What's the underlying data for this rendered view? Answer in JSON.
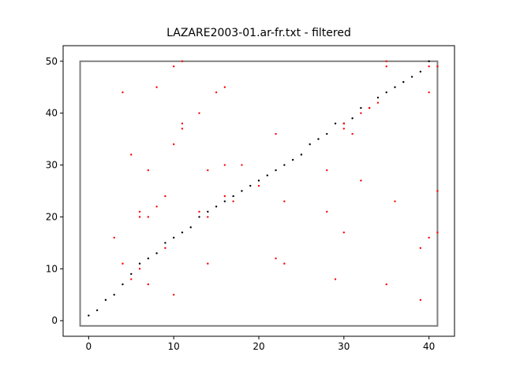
{
  "chart_data": {
    "type": "scatter",
    "title": "LAZARE2003-01.ar-fr.txt - filtered",
    "xlabel": "",
    "ylabel": "",
    "xlim": [
      -3,
      43
    ],
    "ylim": [
      -3,
      53
    ],
    "xticks": [
      0,
      10,
      20,
      30,
      40
    ],
    "yticks": [
      0,
      10,
      20,
      30,
      40,
      50
    ],
    "grid": false,
    "box": {
      "x": [
        -1,
        41
      ],
      "y": [
        -1,
        50
      ],
      "color": "#808080"
    },
    "series": [
      {
        "color": "#000000",
        "points": [
          [
            0,
            1
          ],
          [
            1,
            2
          ],
          [
            2,
            4
          ],
          [
            3,
            5
          ],
          [
            4,
            7
          ],
          [
            5,
            9
          ],
          [
            6,
            11
          ],
          [
            7,
            12
          ],
          [
            8,
            13
          ],
          [
            9,
            15
          ],
          [
            10,
            16
          ],
          [
            11,
            17
          ],
          [
            12,
            18
          ],
          [
            13,
            20
          ],
          [
            14,
            21
          ],
          [
            15,
            22
          ],
          [
            16,
            23
          ],
          [
            17,
            24
          ],
          [
            18,
            25
          ],
          [
            19,
            26
          ],
          [
            20,
            27
          ],
          [
            21,
            28
          ],
          [
            22,
            29
          ],
          [
            23,
            30
          ],
          [
            24,
            31
          ],
          [
            25,
            32
          ],
          [
            26,
            34
          ],
          [
            27,
            35
          ],
          [
            28,
            36
          ],
          [
            29,
            38
          ],
          [
            30,
            38
          ],
          [
            31,
            39
          ],
          [
            32,
            41
          ],
          [
            33,
            41
          ],
          [
            34,
            43
          ],
          [
            35,
            44
          ],
          [
            36,
            45
          ],
          [
            37,
            46
          ],
          [
            38,
            47
          ],
          [
            39,
            48
          ],
          [
            40,
            50
          ]
        ]
      },
      {
        "color": "#ff0000",
        "points": [
          [
            3,
            16
          ],
          [
            4,
            44
          ],
          [
            4,
            11
          ],
          [
            5,
            32
          ],
          [
            5,
            8
          ],
          [
            6,
            21
          ],
          [
            6,
            20
          ],
          [
            6,
            10
          ],
          [
            7,
            29
          ],
          [
            7,
            20
          ],
          [
            7,
            7
          ],
          [
            8,
            45
          ],
          [
            8,
            22
          ],
          [
            9,
            24
          ],
          [
            9,
            14
          ],
          [
            10,
            49
          ],
          [
            10,
            34
          ],
          [
            10,
            5
          ],
          [
            11,
            50
          ],
          [
            11,
            38
          ],
          [
            11,
            37
          ],
          [
            13,
            40
          ],
          [
            13,
            21
          ],
          [
            14,
            29
          ],
          [
            14,
            20
          ],
          [
            14,
            11
          ],
          [
            15,
            44
          ],
          [
            16,
            45
          ],
          [
            16,
            30
          ],
          [
            16,
            24
          ],
          [
            17,
            23
          ],
          [
            18,
            30
          ],
          [
            20,
            26
          ],
          [
            22,
            36
          ],
          [
            22,
            12
          ],
          [
            23,
            23
          ],
          [
            23,
            11
          ],
          [
            28,
            29
          ],
          [
            28,
            21
          ],
          [
            29,
            8
          ],
          [
            30,
            38
          ],
          [
            30,
            37
          ],
          [
            30,
            17
          ],
          [
            31,
            36
          ],
          [
            32,
            40
          ],
          [
            32,
            27
          ],
          [
            33,
            41
          ],
          [
            34,
            42
          ],
          [
            35,
            50
          ],
          [
            35,
            49
          ],
          [
            35,
            7
          ],
          [
            36,
            23
          ],
          [
            39,
            14
          ],
          [
            39,
            4
          ],
          [
            40,
            49
          ],
          [
            40,
            44
          ],
          [
            40,
            16
          ],
          [
            41,
            49
          ],
          [
            41,
            25
          ],
          [
            41,
            17
          ]
        ]
      }
    ]
  }
}
